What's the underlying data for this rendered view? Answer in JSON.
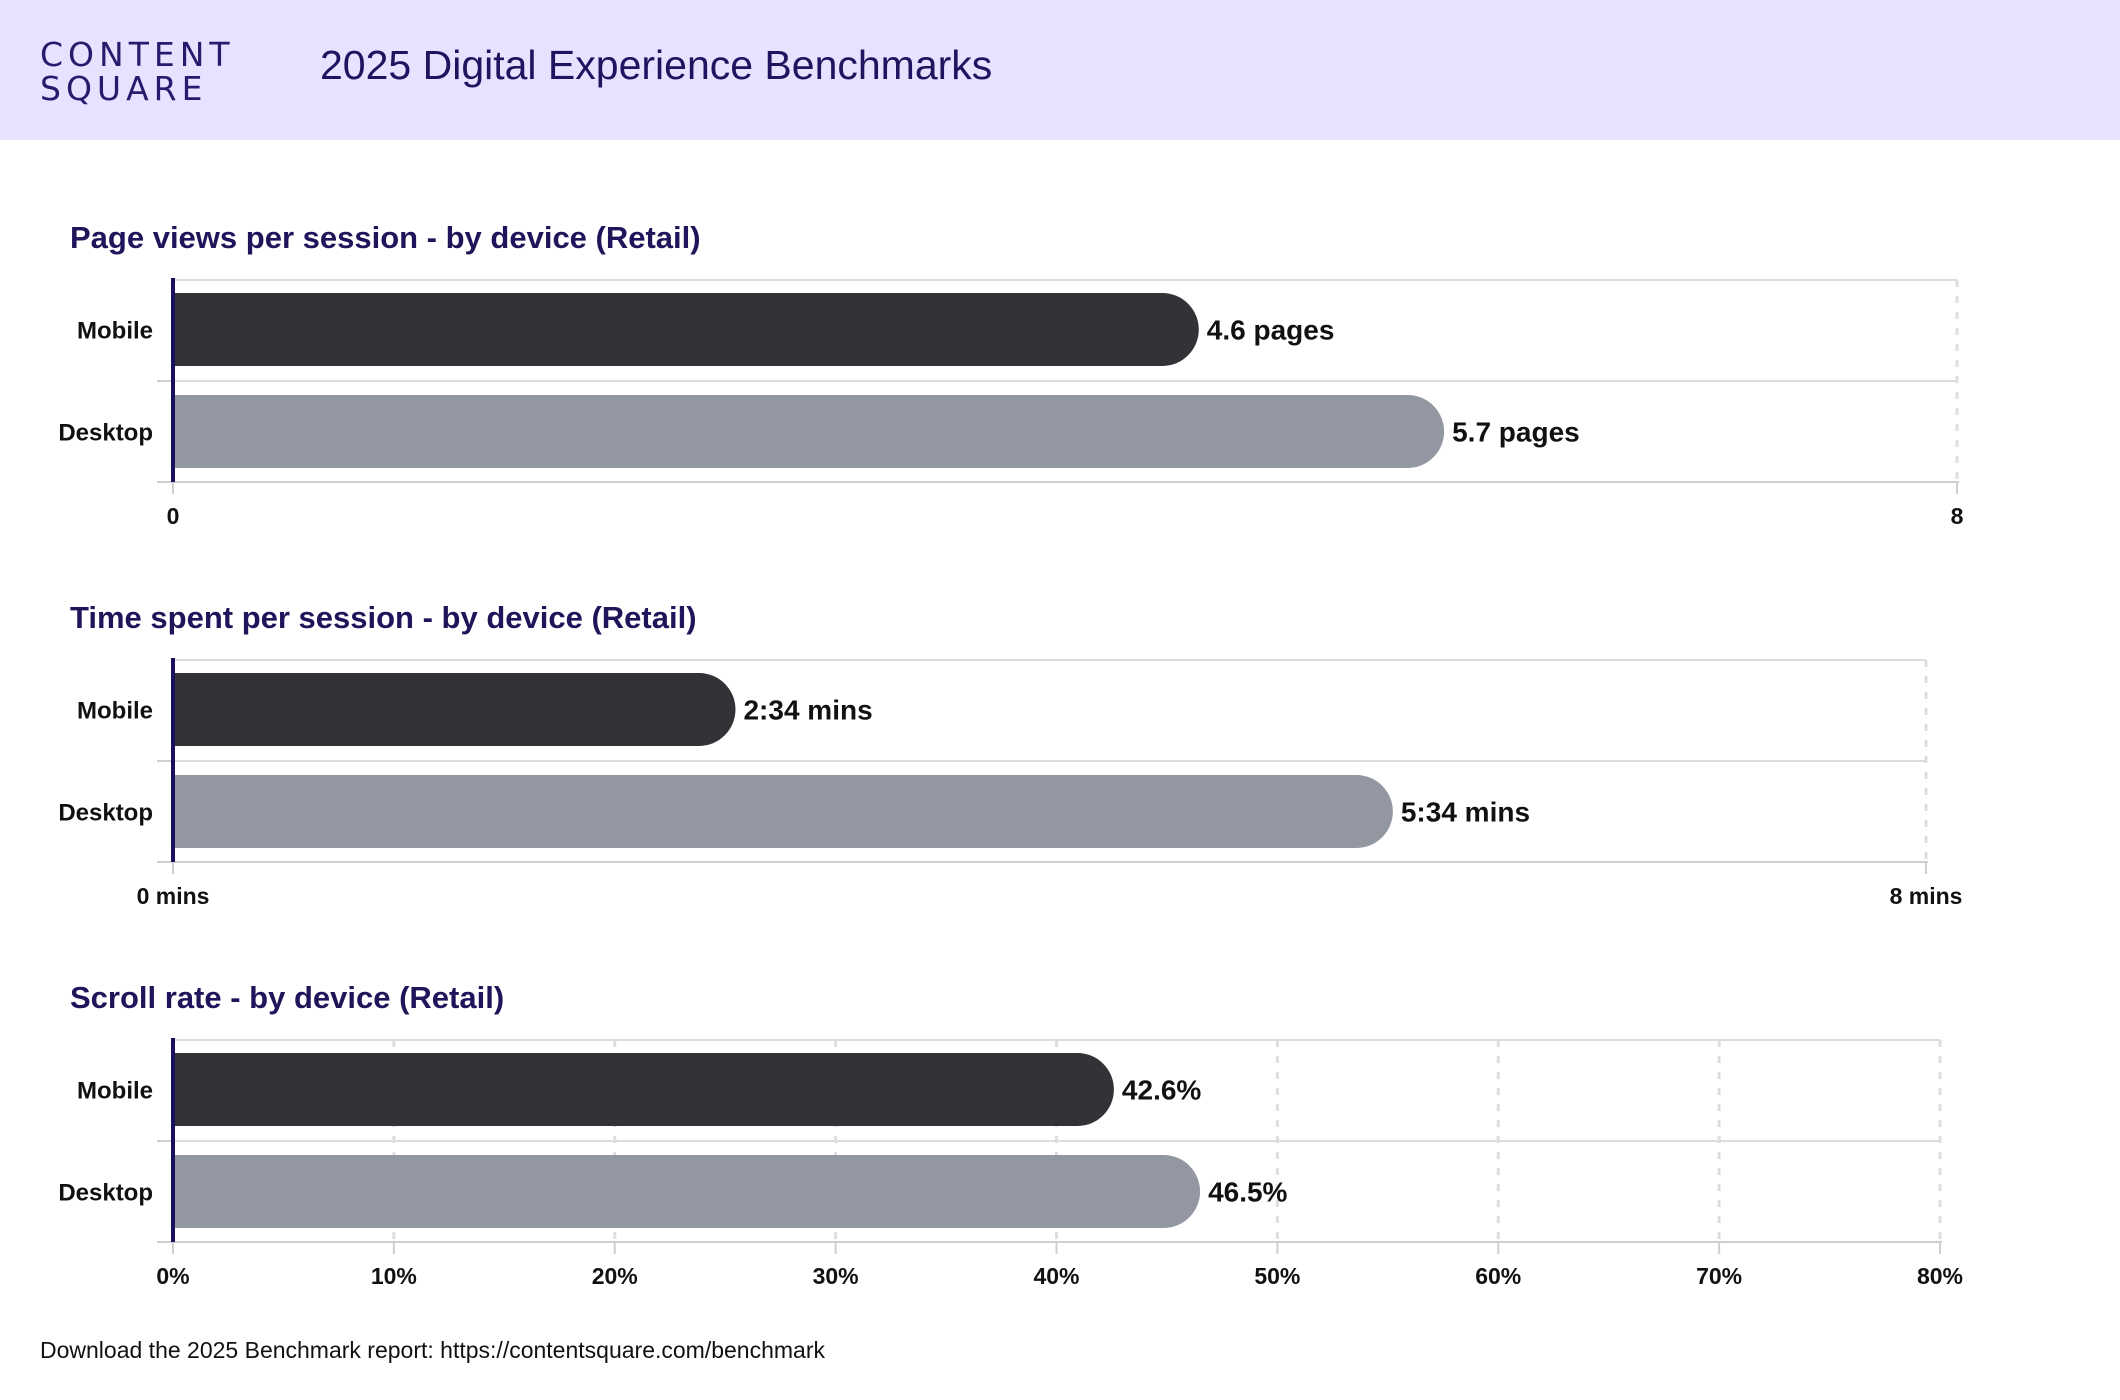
{
  "header": {
    "logo_line1": "CONTENT",
    "logo_line2": "SQUARE",
    "title": "2025 Digital Experience Benchmarks"
  },
  "footer": {
    "text": "Download the 2025 Benchmark report: https://contentsquare.com/benchmark"
  },
  "colors": {
    "header_bg": "#e6e2ff",
    "title": "#20145a",
    "mobile_bar": "#323336",
    "desktop_bar": "#9297a1",
    "axis": "#1a1060"
  },
  "chart_data": [
    {
      "type": "bar",
      "orientation": "horizontal",
      "title": "Page views per session - by device (Retail)",
      "categories": [
        "Mobile",
        "Desktop"
      ],
      "values": [
        4.6,
        5.7
      ],
      "value_labels": [
        "4.6 pages",
        "5.7 pages"
      ],
      "xlim": [
        0,
        8
      ],
      "ticks": [
        0,
        8
      ],
      "tick_labels": [
        "0",
        "8"
      ],
      "grid": false
    },
    {
      "type": "bar",
      "orientation": "horizontal",
      "title": "Time spent per session - by device (Retail)",
      "categories": [
        "Mobile",
        "Desktop"
      ],
      "values": [
        2.567,
        5.567
      ],
      "value_labels": [
        "2:34 mins",
        "5:34 mins"
      ],
      "xlim": [
        0,
        8
      ],
      "ticks": [
        0,
        8
      ],
      "tick_labels": [
        "0 mins",
        "8 mins"
      ],
      "grid": false
    },
    {
      "type": "bar",
      "orientation": "horizontal",
      "title": "Scroll rate - by device (Retail)",
      "categories": [
        "Mobile",
        "Desktop"
      ],
      "values": [
        42.6,
        46.5
      ],
      "value_labels": [
        "42.6%",
        "46.5%"
      ],
      "xlim": [
        0,
        80
      ],
      "ticks": [
        0,
        10,
        20,
        30,
        40,
        50,
        60,
        70,
        80
      ],
      "tick_labels": [
        "0%",
        "10%",
        "20%",
        "30%",
        "40%",
        "50%",
        "60%",
        "70%",
        "80%"
      ],
      "grid": true
    }
  ]
}
